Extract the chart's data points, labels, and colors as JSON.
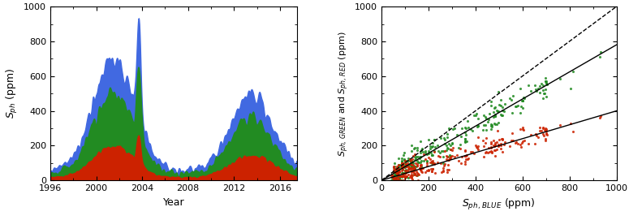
{
  "left_panel": {
    "xlabel": "Year",
    "ylabel": "$S_{ph}$ (ppm)",
    "xlim": [
      1996,
      2017.5
    ],
    "ylim": [
      0,
      1000
    ],
    "xticks": [
      1996,
      2000,
      2004,
      2008,
      2012,
      2016
    ],
    "yticks": [
      0,
      200,
      400,
      600,
      800,
      1000
    ],
    "color_blue": "#4169E1",
    "color_green": "#228B22",
    "color_red": "#CC2200"
  },
  "right_panel": {
    "xlabel": "$S_{ph,\\, BLUE}$ (ppm)",
    "ylabel": "$S_{ph,\\, GREEN}$ and $S_{ph,\\, RED}$ (ppm)",
    "xlim": [
      0,
      1000
    ],
    "ylim": [
      0,
      1000
    ],
    "xticks": [
      0,
      200,
      400,
      600,
      800,
      1000
    ],
    "yticks": [
      0,
      200,
      400,
      600,
      800,
      1000
    ],
    "color_green": "#228B22",
    "color_red": "#CC2200",
    "slope_green": 0.78,
    "intercept_green": 0,
    "slope_red": 0.4,
    "intercept_red": 0
  },
  "figure_bg": "#ffffff"
}
